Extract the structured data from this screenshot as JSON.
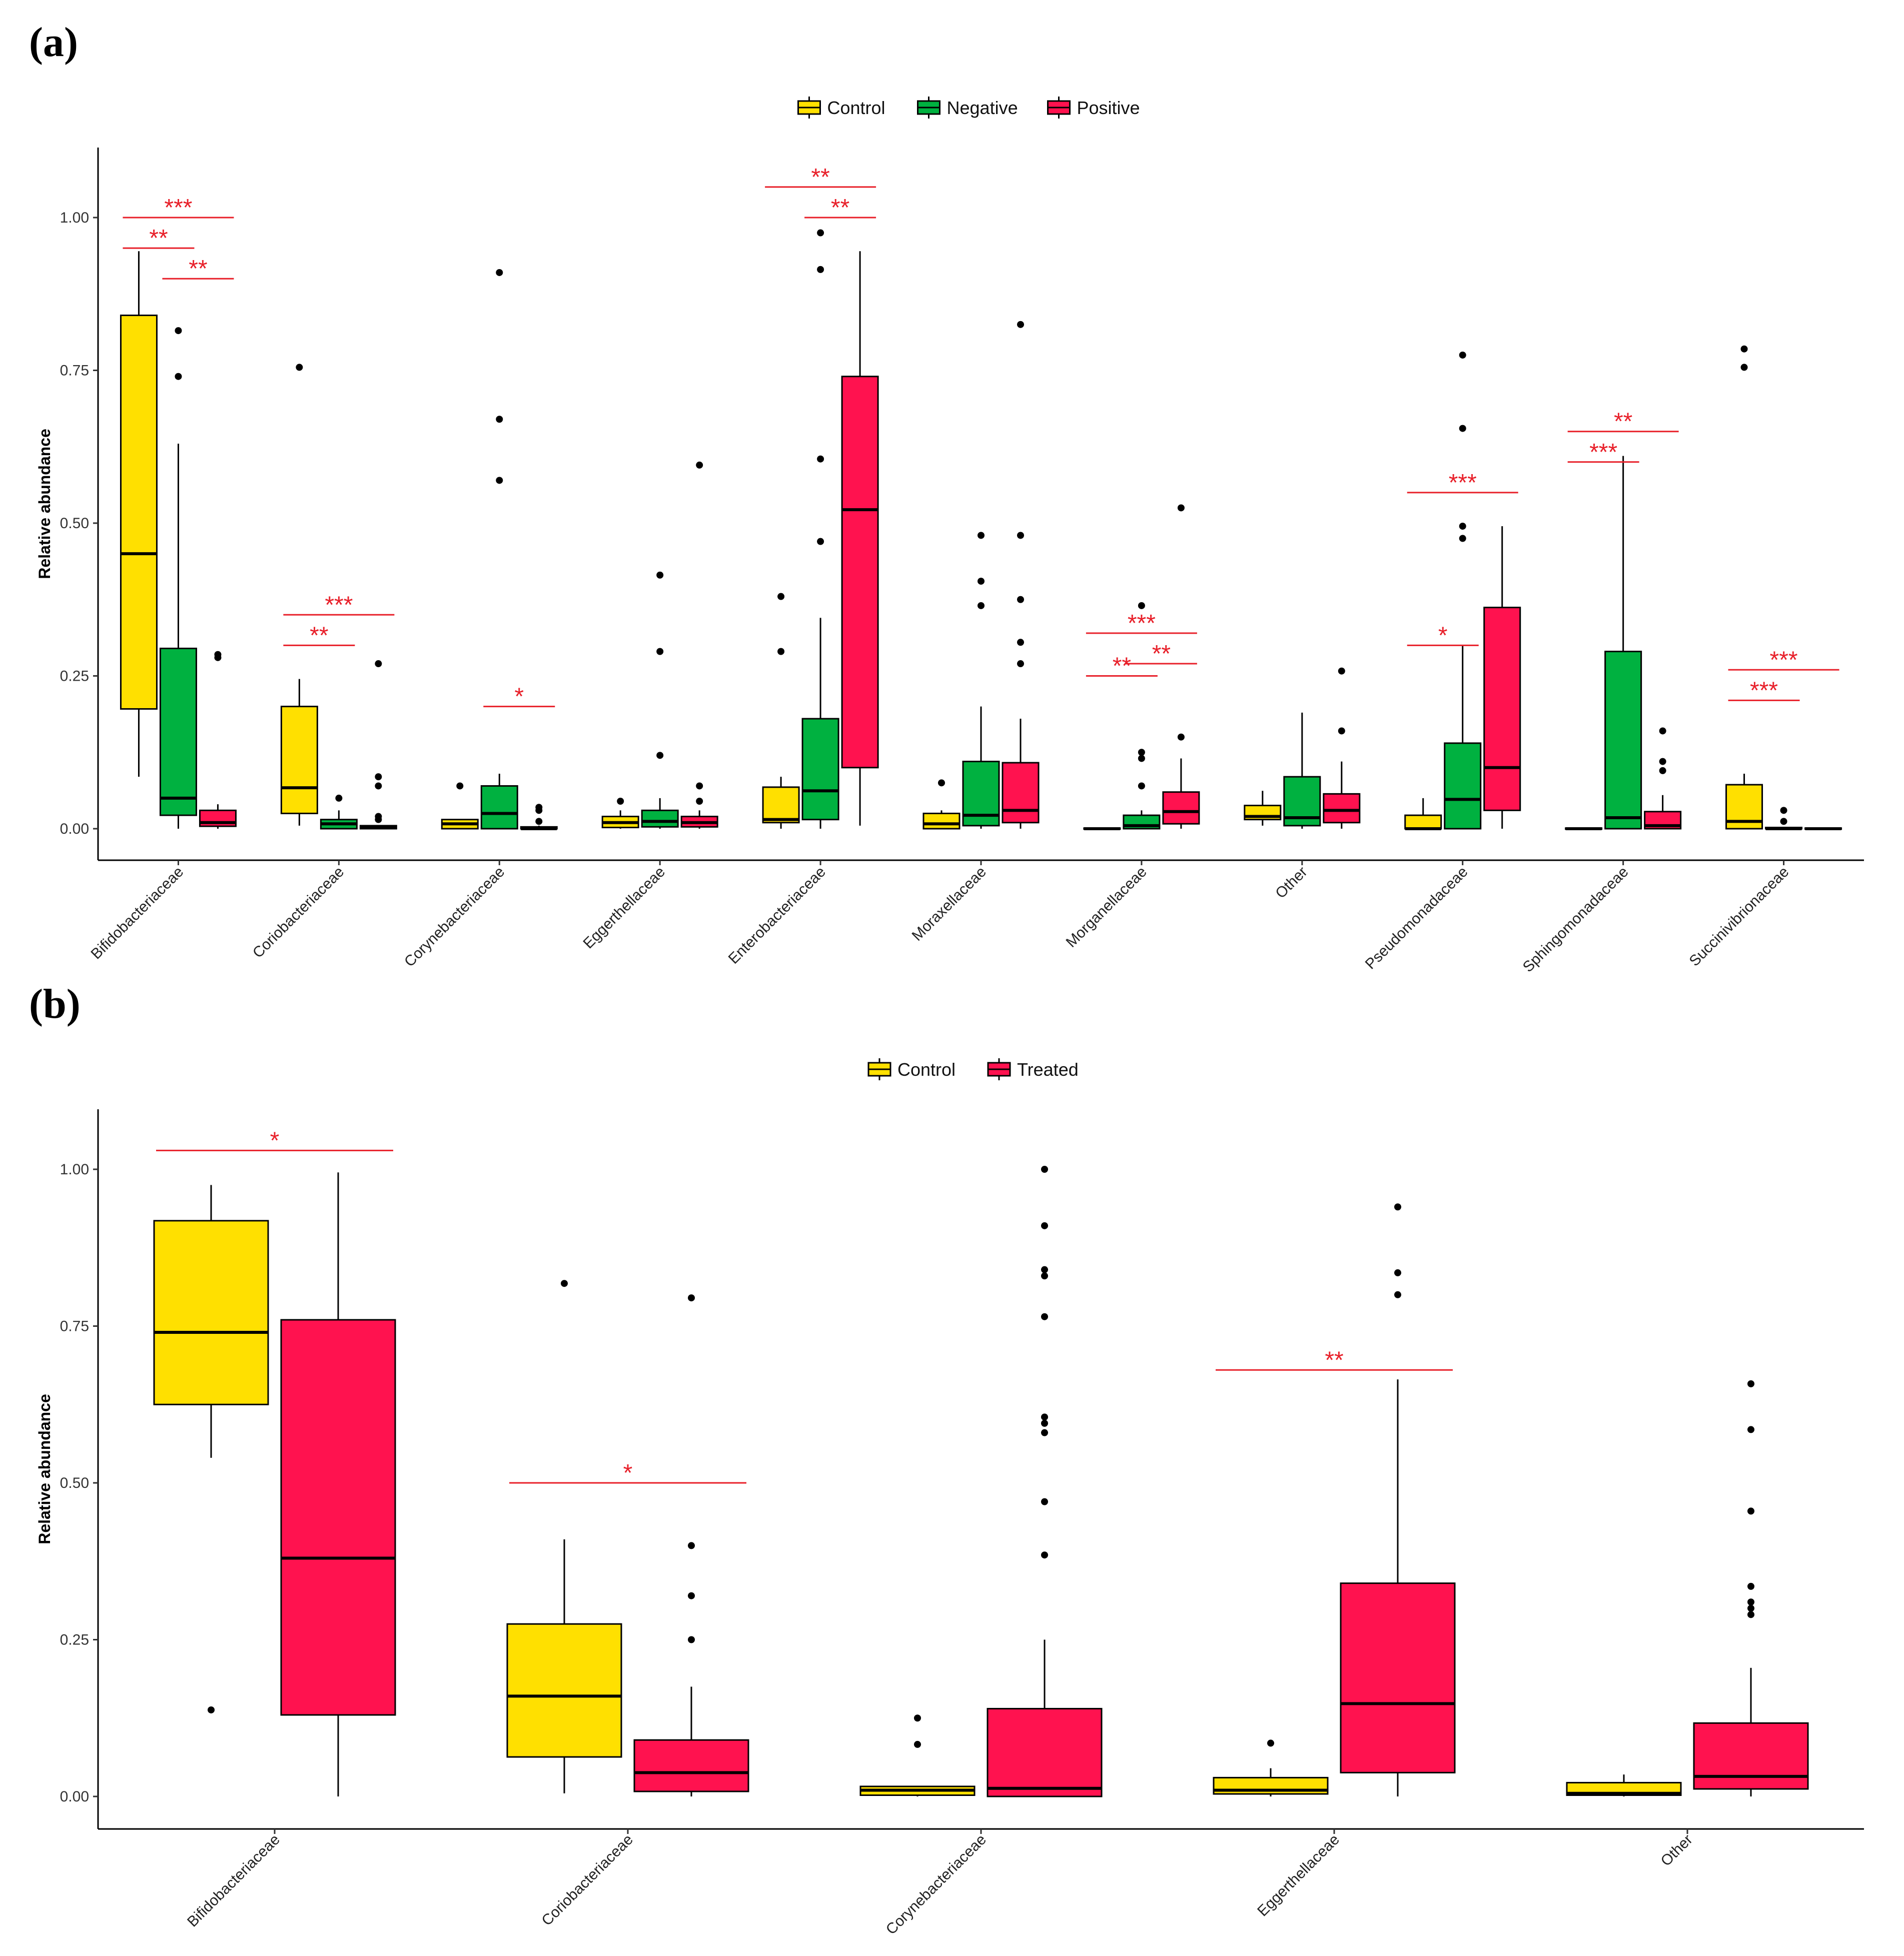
{
  "chart_data": [
    {
      "panel_label": "(a)",
      "type": "box",
      "ylabel": "Relative abundance",
      "xlabel": "",
      "ylim": [
        -0.05,
        1.12
      ],
      "yticks": [
        "0.00",
        "0.25",
        "0.50",
        "0.75",
        "1.00"
      ],
      "legend": {
        "position": "top-center",
        "entries": [
          {
            "name": "Control",
            "color": "#ffe000"
          },
          {
            "name": "Negative",
            "color": "#00b140"
          },
          {
            "name": "Positive",
            "color": "#ff124f"
          }
        ]
      },
      "categories": [
        "Bifidobacteriaceae",
        "Coriobacteriaceae",
        "Corynebacteriaceae",
        "Eggerthellaceae",
        "Enterobacteriaceae",
        "Moraxellaceae",
        "Morganellaceae",
        "Other",
        "Pseudomonadaceae",
        "Sphingomonadaceae",
        "Succinivibrionaceae"
      ],
      "series": [
        {
          "name": "Control",
          "color": "#ffe000",
          "boxes": [
            {
              "q1": 0.196,
              "median": 0.45,
              "q3": 0.84,
              "lw": 0.085,
              "uw": 0.945,
              "outliers": []
            },
            {
              "q1": 0.025,
              "median": 0.067,
              "q3": 0.2,
              "lw": 0.005,
              "uw": 0.245,
              "outliers": [
                0.755
              ]
            },
            {
              "q1": 0.0,
              "median": 0.008,
              "q3": 0.015,
              "lw": 0.0,
              "uw": 0.015,
              "outliers": [
                0.07
              ]
            },
            {
              "q1": 0.002,
              "median": 0.01,
              "q3": 0.02,
              "lw": 0.0,
              "uw": 0.03,
              "outliers": [
                0.045
              ]
            },
            {
              "q1": 0.01,
              "median": 0.015,
              "q3": 0.068,
              "lw": 0.0,
              "uw": 0.085,
              "outliers": [
                0.29,
                0.38
              ]
            },
            {
              "q1": 0.0,
              "median": 0.008,
              "q3": 0.025,
              "lw": 0.0,
              "uw": 0.03,
              "outliers": [
                0.075
              ]
            },
            {
              "q1": 0.0,
              "median": 0.0,
              "q3": 0.001,
              "lw": 0.0,
              "uw": 0.001,
              "outliers": []
            },
            {
              "q1": 0.015,
              "median": 0.02,
              "q3": 0.038,
              "lw": 0.005,
              "uw": 0.062,
              "outliers": []
            },
            {
              "q1": 0.0,
              "median": 0.0,
              "q3": 0.022,
              "lw": 0.0,
              "uw": 0.05,
              "outliers": []
            },
            {
              "q1": 0.0,
              "median": 0.0,
              "q3": 0.001,
              "lw": 0.0,
              "uw": 0.001,
              "outliers": []
            },
            {
              "q1": 0.0,
              "median": 0.012,
              "q3": 0.072,
              "lw": 0.0,
              "uw": 0.09,
              "outliers": [
                0.755,
                0.785
              ]
            }
          ]
        },
        {
          "name": "Negative",
          "color": "#00b140",
          "boxes": [
            {
              "q1": 0.022,
              "median": 0.05,
              "q3": 0.295,
              "lw": 0.0,
              "uw": 0.63,
              "outliers": [
                0.74,
                0.815
              ]
            },
            {
              "q1": 0.0,
              "median": 0.008,
              "q3": 0.015,
              "lw": 0.0,
              "uw": 0.03,
              "outliers": [
                0.05
              ]
            },
            {
              "q1": 0.0,
              "median": 0.025,
              "q3": 0.07,
              "lw": 0.0,
              "uw": 0.09,
              "outliers": [
                0.57,
                0.67,
                0.91
              ]
            },
            {
              "q1": 0.003,
              "median": 0.012,
              "q3": 0.03,
              "lw": 0.0,
              "uw": 0.05,
              "outliers": [
                0.12,
                0.29,
                0.415
              ]
            },
            {
              "q1": 0.015,
              "median": 0.062,
              "q3": 0.18,
              "lw": 0.0,
              "uw": 0.345,
              "outliers": [
                0.47,
                0.605,
                0.915,
                0.975
              ]
            },
            {
              "q1": 0.005,
              "median": 0.022,
              "q3": 0.11,
              "lw": 0.0,
              "uw": 0.2,
              "outliers": [
                0.365,
                0.405,
                0.48
              ]
            },
            {
              "q1": 0.0,
              "median": 0.005,
              "q3": 0.022,
              "lw": 0.0,
              "uw": 0.03,
              "outliers": [
                0.07,
                0.115,
                0.125,
                0.365
              ]
            },
            {
              "q1": 0.005,
              "median": 0.018,
              "q3": 0.085,
              "lw": 0.0,
              "uw": 0.19,
              "outliers": []
            },
            {
              "q1": 0.0,
              "median": 0.048,
              "q3": 0.14,
              "lw": 0.0,
              "uw": 0.3,
              "outliers": [
                0.475,
                0.495,
                0.655,
                0.775
              ]
            },
            {
              "q1": 0.0,
              "median": 0.018,
              "q3": 0.29,
              "lw": 0.0,
              "uw": 0.61,
              "outliers": []
            },
            {
              "q1": 0.0,
              "median": 0.0,
              "q3": 0.002,
              "lw": 0.0,
              "uw": 0.002,
              "outliers": [
                0.012,
                0.03
              ]
            }
          ]
        },
        {
          "name": "Positive",
          "color": "#ff124f",
          "boxes": [
            {
              "q1": 0.004,
              "median": 0.01,
              "q3": 0.03,
              "lw": 0.0,
              "uw": 0.04,
              "outliers": [
                0.28,
                0.285
              ]
            },
            {
              "q1": 0.0,
              "median": 0.002,
              "q3": 0.005,
              "lw": 0.0,
              "uw": 0.006,
              "outliers": [
                0.015,
                0.02,
                0.07,
                0.085,
                0.27
              ]
            },
            {
              "q1": 0.0,
              "median": 0.0,
              "q3": 0.003,
              "lw": 0.0,
              "uw": 0.005,
              "outliers": [
                0.012,
                0.03,
                0.035
              ]
            },
            {
              "q1": 0.003,
              "median": 0.01,
              "q3": 0.02,
              "lw": 0.0,
              "uw": 0.03,
              "outliers": [
                0.045,
                0.07,
                0.595
              ]
            },
            {
              "q1": 0.1,
              "median": 0.522,
              "q3": 0.74,
              "lw": 0.005,
              "uw": 0.945,
              "outliers": []
            },
            {
              "q1": 0.01,
              "median": 0.03,
              "q3": 0.108,
              "lw": 0.0,
              "uw": 0.18,
              "outliers": [
                0.27,
                0.305,
                0.375,
                0.48,
                0.825
              ]
            },
            {
              "q1": 0.008,
              "median": 0.028,
              "q3": 0.06,
              "lw": 0.0,
              "uw": 0.115,
              "outliers": [
                0.15,
                0.525
              ]
            },
            {
              "q1": 0.01,
              "median": 0.03,
              "q3": 0.057,
              "lw": 0.0,
              "uw": 0.11,
              "outliers": [
                0.16,
                0.258
              ]
            },
            {
              "q1": 0.03,
              "median": 0.1,
              "q3": 0.362,
              "lw": 0.0,
              "uw": 0.495,
              "outliers": []
            },
            {
              "q1": 0.0,
              "median": 0.005,
              "q3": 0.028,
              "lw": 0.0,
              "uw": 0.055,
              "outliers": [
                0.095,
                0.11,
                0.16
              ]
            },
            {
              "q1": 0.0,
              "median": 0.0,
              "q3": 0.001,
              "lw": 0.0,
              "uw": 0.001,
              "outliers": []
            }
          ]
        }
      ],
      "significance": [
        {
          "category": 0,
          "from": 0,
          "to": 2,
          "y": 1.0,
          "label": "***"
        },
        {
          "category": 0,
          "from": 0,
          "to": 1,
          "y": 0.95,
          "label": "**"
        },
        {
          "category": 0,
          "from": 1,
          "to": 2,
          "y": 0.9,
          "label": "**"
        },
        {
          "category": 1,
          "from": 0,
          "to": 2,
          "y": 0.35,
          "label": "***"
        },
        {
          "category": 1,
          "from": 0,
          "to": 1,
          "y": 0.3,
          "label": "**"
        },
        {
          "category": 2,
          "from": 1,
          "to": 2,
          "y": 0.2,
          "label": "*"
        },
        {
          "category": 4,
          "from": 0,
          "to": 2,
          "y": 1.05,
          "label": "**"
        },
        {
          "category": 4,
          "from": 1,
          "to": 2,
          "y": 1.0,
          "label": "**"
        },
        {
          "category": 6,
          "from": 0,
          "to": 2,
          "y": 0.32,
          "label": "***"
        },
        {
          "category": 6,
          "from": 0,
          "to": 1,
          "y": 0.25,
          "label": "**"
        },
        {
          "category": 6,
          "from": 1,
          "to": 2,
          "y": 0.27,
          "label": "**"
        },
        {
          "category": 8,
          "from": 0,
          "to": 1,
          "y": 0.3,
          "label": "*"
        },
        {
          "category": 8,
          "from": 0,
          "to": 2,
          "y": 0.55,
          "label": "***"
        },
        {
          "category": 9,
          "from": 0,
          "to": 2,
          "y": 0.65,
          "label": "**"
        },
        {
          "category": 9,
          "from": 0,
          "to": 1,
          "y": 0.6,
          "label": "***"
        },
        {
          "category": 10,
          "from": 0,
          "to": 2,
          "y": 0.26,
          "label": "***"
        },
        {
          "category": 10,
          "from": 0,
          "to": 1,
          "y": 0.21,
          "label": "***"
        }
      ]
    },
    {
      "panel_label": "(b)",
      "type": "box",
      "ylabel": "Relative abundance",
      "xlabel": "",
      "ylim": [
        -0.05,
        1.09
      ],
      "yticks": [
        "0.00",
        "0.25",
        "0.50",
        "0.75",
        "1.00"
      ],
      "legend": {
        "position": "top-center",
        "entries": [
          {
            "name": "Control",
            "color": "#ffe000"
          },
          {
            "name": "Treated",
            "color": "#ff124f"
          }
        ]
      },
      "categories": [
        "Bifidobacteriaceae",
        "Coriobacteriaceae",
        "Corynebacteriaceae",
        "Eggerthellaceae",
        "Other"
      ],
      "series": [
        {
          "name": "Control",
          "color": "#ffe000",
          "boxes": [
            {
              "q1": 0.625,
              "median": 0.74,
              "q3": 0.918,
              "lw": 0.54,
              "uw": 0.975,
              "outliers": [
                0.138
              ]
            },
            {
              "q1": 0.063,
              "median": 0.16,
              "q3": 0.275,
              "lw": 0.005,
              "uw": 0.41,
              "outliers": [
                0.818
              ]
            },
            {
              "q1": 0.002,
              "median": 0.01,
              "q3": 0.016,
              "lw": 0.0,
              "uw": 0.016,
              "outliers": [
                0.083,
                0.125
              ]
            },
            {
              "q1": 0.004,
              "median": 0.01,
              "q3": 0.03,
              "lw": 0.0,
              "uw": 0.045,
              "outliers": [
                0.085
              ]
            },
            {
              "q1": 0.002,
              "median": 0.005,
              "q3": 0.022,
              "lw": 0.0,
              "uw": 0.035,
              "outliers": []
            }
          ]
        },
        {
          "name": "Treated",
          "color": "#ff124f",
          "boxes": [
            {
              "q1": 0.13,
              "median": 0.38,
              "q3": 0.76,
              "lw": 0.0,
              "uw": 0.995,
              "outliers": []
            },
            {
              "q1": 0.008,
              "median": 0.038,
              "q3": 0.09,
              "lw": 0.0,
              "uw": 0.175,
              "outliers": [
                0.25,
                0.32,
                0.4,
                0.795
              ]
            },
            {
              "q1": 0.0,
              "median": 0.013,
              "q3": 0.14,
              "lw": 0.0,
              "uw": 0.25,
              "outliers": [
                0.385,
                0.47,
                0.58,
                0.595,
                0.605,
                0.765,
                0.83,
                0.84,
                0.91,
                1.0
              ]
            },
            {
              "q1": 0.038,
              "median": 0.148,
              "q3": 0.34,
              "lw": 0.0,
              "uw": 0.665,
              "outliers": [
                0.8,
                0.835,
                0.94
              ]
            },
            {
              "q1": 0.012,
              "median": 0.032,
              "q3": 0.117,
              "lw": 0.0,
              "uw": 0.205,
              "outliers": [
                0.29,
                0.3,
                0.31,
                0.335,
                0.455,
                0.585,
                0.658
              ]
            }
          ]
        }
      ],
      "significance": [
        {
          "category": 0,
          "from": 0,
          "to": 1,
          "y": 1.03,
          "label": "*"
        },
        {
          "category": 1,
          "from": 0,
          "to": 1,
          "y": 0.5,
          "label": "*"
        },
        {
          "category": 3,
          "from": 0,
          "to": 1,
          "y": 0.68,
          "label": "**"
        }
      ]
    }
  ]
}
